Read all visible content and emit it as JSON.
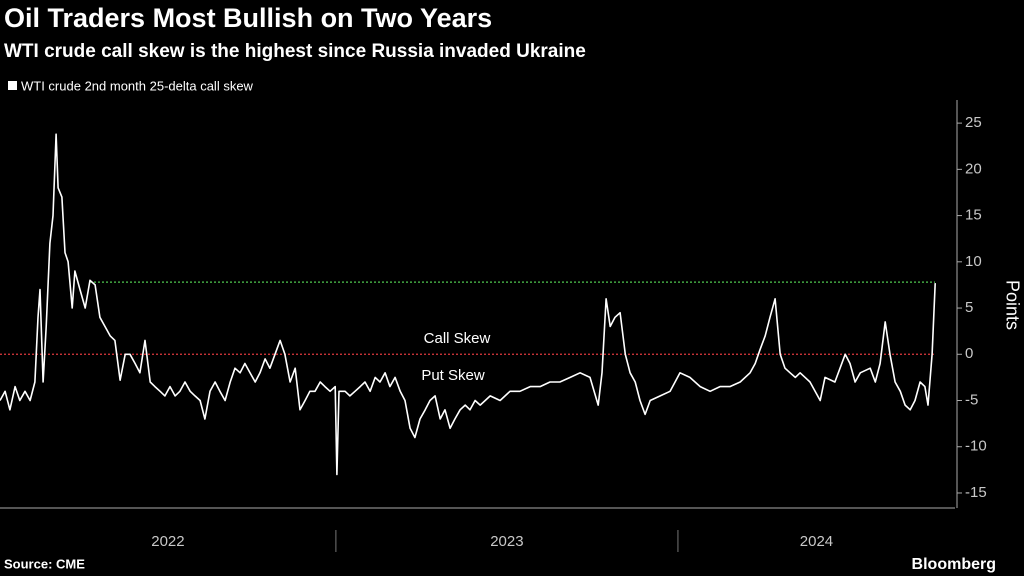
{
  "chart_data": {
    "type": "line",
    "title": "Oil Traders Most Bullish on Two Years",
    "subtitle": "WTI crude call skew is the highest since Russia invaded Ukraine",
    "y_label": "Points",
    "source": "Source: CME",
    "brand": "Bloomberg",
    "annotations": [
      {
        "text": "Call Skew",
        "color": "#3fd3d3"
      },
      {
        "text": "Put Skew",
        "color": "#e6e022"
      }
    ],
    "reference_lines": [
      {
        "value": 7.8,
        "color": "#4fc84f"
      },
      {
        "value": 0,
        "color": "#e0393e"
      }
    ],
    "xlim": [
      2022.018,
      2024.81
    ],
    "xticks": [
      {
        "value": 2022.5,
        "label": "2022"
      },
      {
        "value": 2023.5,
        "label": "2023"
      },
      {
        "value": 2024.5,
        "label": "2024"
      }
    ],
    "ylim": [
      -16.3,
      27.5
    ],
    "yticks": [
      -15,
      -10,
      -5,
      0,
      5,
      10,
      15,
      20,
      25
    ],
    "x": [
      2022.018,
      2022.033,
      2022.047,
      2022.062,
      2022.076,
      2022.091,
      2022.106,
      2022.12,
      2022.129,
      2022.135,
      2022.144,
      2022.153,
      2022.164,
      2022.173,
      2022.182,
      2022.188,
      2022.199,
      2022.208,
      2022.217,
      2022.229,
      2022.237,
      2022.252,
      2022.267,
      2022.281,
      2022.296,
      2022.31,
      2022.325,
      2022.34,
      2022.354,
      2022.369,
      2022.384,
      2022.398,
      2022.413,
      2022.427,
      2022.442,
      2022.457,
      2022.471,
      2022.486,
      2022.5,
      2022.515,
      2022.53,
      2022.544,
      2022.559,
      2022.574,
      2022.588,
      2022.603,
      2022.617,
      2022.632,
      2022.647,
      2022.661,
      2022.676,
      2022.691,
      2022.705,
      2022.72,
      2022.734,
      2022.749,
      2022.764,
      2022.778,
      2022.793,
      2022.807,
      2022.822,
      2022.837,
      2022.851,
      2022.866,
      2022.881,
      2022.895,
      2022.91,
      2022.924,
      2022.939,
      2022.954,
      2022.968,
      2022.983,
      2022.998,
      2023.003,
      2023.009,
      2023.027,
      2023.041,
      2023.056,
      2023.071,
      2023.085,
      2023.1,
      2023.115,
      2023.129,
      2023.144,
      2023.158,
      2023.173,
      2023.188,
      2023.202,
      2023.217,
      2023.231,
      2023.246,
      2023.261,
      2023.275,
      2023.29,
      2023.305,
      2023.319,
      2023.334,
      2023.348,
      2023.363,
      2023.378,
      2023.392,
      2023.407,
      2023.422,
      2023.451,
      2023.48,
      2023.509,
      2023.538,
      2023.568,
      2023.597,
      2023.626,
      2023.655,
      2023.685,
      2023.714,
      2023.743,
      2023.767,
      2023.778,
      2023.79,
      2023.802,
      2023.816,
      2023.831,
      2023.846,
      2023.86,
      2023.875,
      2023.889,
      2023.904,
      2023.919,
      2023.948,
      2023.977,
      2024.006,
      2024.035,
      2024.065,
      2024.094,
      2024.123,
      2024.152,
      2024.182,
      2024.211,
      2024.226,
      2024.24,
      2024.255,
      2024.269,
      2024.284,
      2024.299,
      2024.313,
      2024.328,
      2024.343,
      2024.357,
      2024.386,
      2024.416,
      2024.43,
      2024.459,
      2024.489,
      2024.503,
      2024.518,
      2024.533,
      2024.562,
      2024.577,
      2024.591,
      2024.606,
      2024.62,
      2024.635,
      2024.65,
      2024.664,
      2024.679,
      2024.693,
      2024.708,
      2024.722,
      2024.731,
      2024.743,
      2024.752
    ],
    "series": [
      {
        "name": "WTI crude 2nd month 25-delta call skew",
        "color": "#ffffff",
        "values": [
          -5,
          -4,
          -6,
          -3.5,
          -5,
          -4,
          -5,
          -3,
          4,
          7,
          -3,
          3,
          12,
          15,
          23.8,
          18,
          17,
          11,
          10,
          5,
          9,
          7,
          5,
          8,
          7.5,
          4,
          3,
          2,
          1.5,
          -2.8,
          0,
          0,
          -1,
          -2,
          1.5,
          -3,
          -3.5,
          -4,
          -4.5,
          -3.5,
          -4.5,
          -4,
          -3,
          -4,
          -4.5,
          -5,
          -7,
          -4,
          -3,
          -4,
          -5,
          -3,
          -1.5,
          -2,
          -1,
          -2,
          -3,
          -2,
          -0.5,
          -1.5,
          0,
          1.5,
          0,
          -3,
          -1.5,
          -6,
          -5,
          -4,
          -4,
          -3,
          -3.5,
          -4,
          -3.5,
          -13,
          -4,
          -4,
          -4.5,
          -4,
          -3.5,
          -3,
          -4,
          -2.5,
          -3,
          -2,
          -3.5,
          -2.5,
          -4,
          -5,
          -8,
          -9,
          -7,
          -6,
          -5,
          -4.5,
          -7,
          -6,
          -8,
          -7,
          -6,
          -5.5,
          -6,
          -5,
          -5.5,
          -4.5,
          -5,
          -4,
          -4,
          -3.5,
          -3.5,
          -3,
          -3,
          -2.5,
          -2,
          -2.5,
          -5.5,
          -2,
          6,
          3,
          4,
          4.5,
          0,
          -2,
          -3,
          -5,
          -6.5,
          -5,
          -4.5,
          -4,
          -2,
          -2.5,
          -3.5,
          -4,
          -3.5,
          -3.5,
          -3,
          -2,
          -1,
          0.5,
          2,
          4,
          6,
          0,
          -1.5,
          -2,
          -2.5,
          -2,
          -3,
          -5,
          -2.5,
          -3,
          0,
          -1,
          -3,
          -2,
          -1.5,
          -3,
          -1,
          3.5,
          0,
          -3,
          -4,
          -5.5,
          -6,
          -5,
          -3,
          -3.5,
          -5.5,
          0,
          7.7
        ]
      }
    ]
  }
}
